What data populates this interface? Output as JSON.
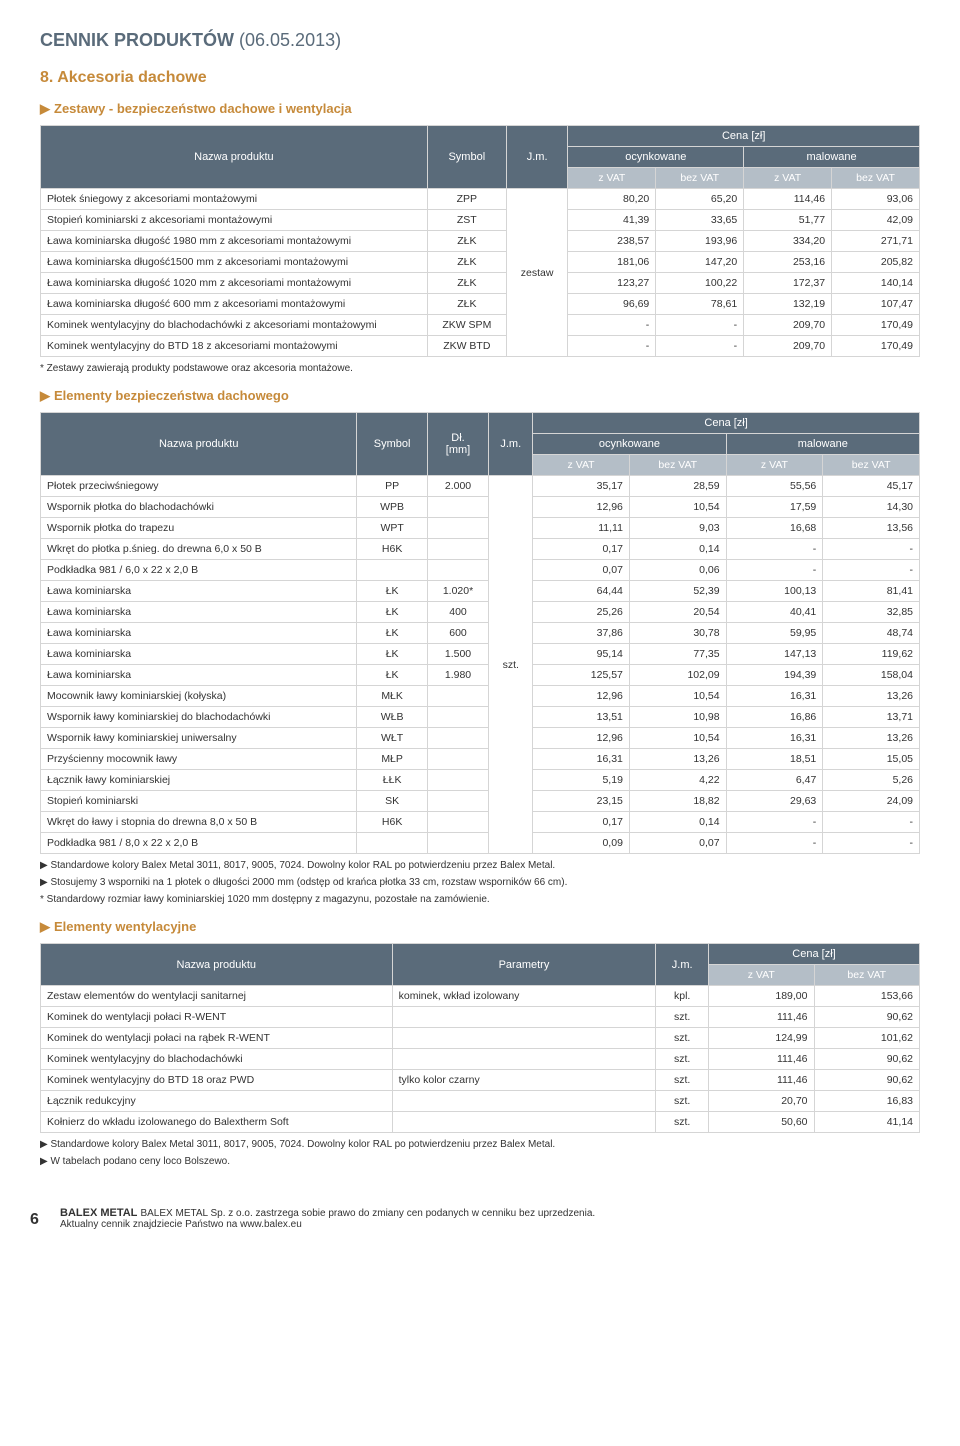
{
  "doc": {
    "title_bold": "CENNIK PRODUKTÓW",
    "title_date": "(06.05.2013)",
    "section_num": "8. Akcesoria dachowe"
  },
  "t1": {
    "heading": "Zestawy - bezpieczeństwo dachowe i wentylacja",
    "cols": {
      "name": "Nazwa produktu",
      "symbol": "Symbol",
      "jm": "J.m.",
      "cena": "Cena [zł]",
      "ocynk": "ocynkowane",
      "malo": "malowane",
      "zvat": "z VAT",
      "bvat": "bez VAT"
    },
    "jm_text": "zestaw",
    "rows": [
      [
        "Płotek śniegowy z akcesoriami montażowymi",
        "ZPP",
        "80,20",
        "65,20",
        "114,46",
        "93,06"
      ],
      [
        "Stopień kominiarski z akcesoriami montażowymi",
        "ZST",
        "41,39",
        "33,65",
        "51,77",
        "42,09"
      ],
      [
        "Ława kominiarska długość 1980 mm z akcesoriami montażowymi",
        "ZŁK",
        "238,57",
        "193,96",
        "334,20",
        "271,71"
      ],
      [
        "Ława kominiarska długość1500 mm z akcesoriami montażowymi",
        "ZŁK",
        "181,06",
        "147,20",
        "253,16",
        "205,82"
      ],
      [
        "Ława kominiarska długość 1020 mm z akcesoriami montażowymi",
        "ZŁK",
        "123,27",
        "100,22",
        "172,37",
        "140,14"
      ],
      [
        "Ława kominiarska długość 600 mm z akcesoriami montażowymi",
        "ZŁK",
        "96,69",
        "78,61",
        "132,19",
        "107,47"
      ],
      [
        "Kominek wentylacyjny do blachodachówki z akcesoriami montażowymi",
        "ZKW SPM",
        "-",
        "-",
        "209,70",
        "170,49"
      ],
      [
        "Kominek wentylacyjny do BTD 18 z akcesoriami montażowymi",
        "ZKW BTD",
        "-",
        "-",
        "209,70",
        "170,49"
      ]
    ],
    "note": "* Zestawy zawierają produkty podstawowe oraz akcesoria montażowe."
  },
  "t2": {
    "heading": "Elementy bezpieczeństwa dachowego",
    "cols": {
      "name": "Nazwa produktu",
      "symbol": "Symbol",
      "dl": "Dł.\n[mm]",
      "jm": "J.m.",
      "cena": "Cena [zł]",
      "ocynk": "ocynkowane",
      "malo": "malowane",
      "zvat": "z VAT",
      "bvat": "bez VAT"
    },
    "jm_text": "szt.",
    "rows": [
      [
        "Płotek przeciwśniegowy",
        "PP",
        "2.000",
        "35,17",
        "28,59",
        "55,56",
        "45,17"
      ],
      [
        "Wspornik płotka do blachodachówki",
        "WPB",
        "",
        "12,96",
        "10,54",
        "17,59",
        "14,30"
      ],
      [
        "Wspornik płotka do trapezu",
        "WPT",
        "",
        "11,11",
        "9,03",
        "16,68",
        "13,56"
      ],
      [
        "Wkręt do płotka p.śnieg. do drewna 6,0 x 50 B",
        "H6K",
        "",
        "0,17",
        "0,14",
        "-",
        "-"
      ],
      [
        "Podkładka 981 / 6,0 x 22 x 2,0 B",
        "",
        "",
        "0,07",
        "0,06",
        "-",
        "-"
      ],
      [
        "Ława kominiarska",
        "ŁK",
        "1.020*",
        "64,44",
        "52,39",
        "100,13",
        "81,41"
      ],
      [
        "Ława kominiarska",
        "ŁK",
        "400",
        "25,26",
        "20,54",
        "40,41",
        "32,85"
      ],
      [
        "Ława kominiarska",
        "ŁK",
        "600",
        "37,86",
        "30,78",
        "59,95",
        "48,74"
      ],
      [
        "Ława kominiarska",
        "ŁK",
        "1.500",
        "95,14",
        "77,35",
        "147,13",
        "119,62"
      ],
      [
        "Ława kominiarska",
        "ŁK",
        "1.980",
        "125,57",
        "102,09",
        "194,39",
        "158,04"
      ],
      [
        "Mocownik ławy kominiarskiej (kołyska)",
        "MŁK",
        "",
        "12,96",
        "10,54",
        "16,31",
        "13,26"
      ],
      [
        "Wspornik ławy kominiarskiej do blachodachówki",
        "WŁB",
        "",
        "13,51",
        "10,98",
        "16,86",
        "13,71"
      ],
      [
        "Wspornik ławy kominiarskiej uniwersalny",
        "WŁT",
        "",
        "12,96",
        "10,54",
        "16,31",
        "13,26"
      ],
      [
        "Przyścienny mocownik ławy",
        "MŁP",
        "",
        "16,31",
        "13,26",
        "18,51",
        "15,05"
      ],
      [
        "Łącznik ławy kominiarskiej",
        "ŁŁK",
        "",
        "5,19",
        "4,22",
        "6,47",
        "5,26"
      ],
      [
        "Stopień kominiarski",
        "SK",
        "",
        "23,15",
        "18,82",
        "29,63",
        "24,09"
      ],
      [
        "Wkręt do ławy i stopnia do drewna 8,0 x 50 B",
        "H6K",
        "",
        "0,17",
        "0,14",
        "-",
        "-"
      ],
      [
        "Podkładka 981 / 8,0 x 22 x 2,0 B",
        "",
        "",
        "0,09",
        "0,07",
        "-",
        "-"
      ]
    ],
    "notes": [
      "▶ Standardowe kolory Balex Metal 3011, 8017, 9005, 7024. Dowolny kolor RAL po potwierdzeniu przez Balex Metal.",
      "▶ Stosujemy 3 wsporniki na 1 płotek o długości 2000 mm (odstęp od krańca płotka 33 cm, rozstaw wsporników 66 cm).",
      "* Standardowy rozmiar ławy kominiarskiej 1020 mm dostępny z magazynu, pozostałe na zamówienie."
    ]
  },
  "t3": {
    "heading": "Elementy wentylacyjne",
    "cols": {
      "name": "Nazwa produktu",
      "param": "Parametry",
      "jm": "J.m.",
      "cena": "Cena [zł]",
      "zvat": "z VAT",
      "bvat": "bez VAT"
    },
    "rows": [
      [
        "Zestaw elementów do wentylacji sanitarnej",
        "kominek, wkład izolowany",
        "kpl.",
        "189,00",
        "153,66"
      ],
      [
        "Kominek do wentylacji połaci R-WENT",
        "",
        "szt.",
        "111,46",
        "90,62"
      ],
      [
        "Kominek do wentylacji połaci na rąbek R-WENT",
        "",
        "szt.",
        "124,99",
        "101,62"
      ],
      [
        "Kominek wentylacyjny do blachodachówki",
        "",
        "szt.",
        "111,46",
        "90,62"
      ],
      [
        "Kominek wentylacyjny do BTD 18 oraz PWD",
        "tylko kolor czarny",
        "szt.",
        "111,46",
        "90,62"
      ],
      [
        "Łącznik redukcyjny",
        "",
        "szt.",
        "20,70",
        "16,83"
      ],
      [
        "Kołnierz do wkładu izolowanego do Balextherm Soft",
        "",
        "szt.",
        "50,60",
        "41,14"
      ]
    ],
    "notes": [
      "▶ Standardowe kolory Balex Metal 3011, 8017, 9005, 7024. Dowolny kolor RAL po potwierdzeniu przez Balex Metal.",
      "▶ W tabelach podano ceny loco Bolszewo."
    ]
  },
  "footer": {
    "page": "6",
    "line1": "BALEX METAL Sp. z o.o. zastrzega sobie prawo do zmiany cen podanych w cenniku bez uprzedzenia.",
    "line2": "Aktualny cennik znajdziecie Państwo na www.balex.eu"
  }
}
